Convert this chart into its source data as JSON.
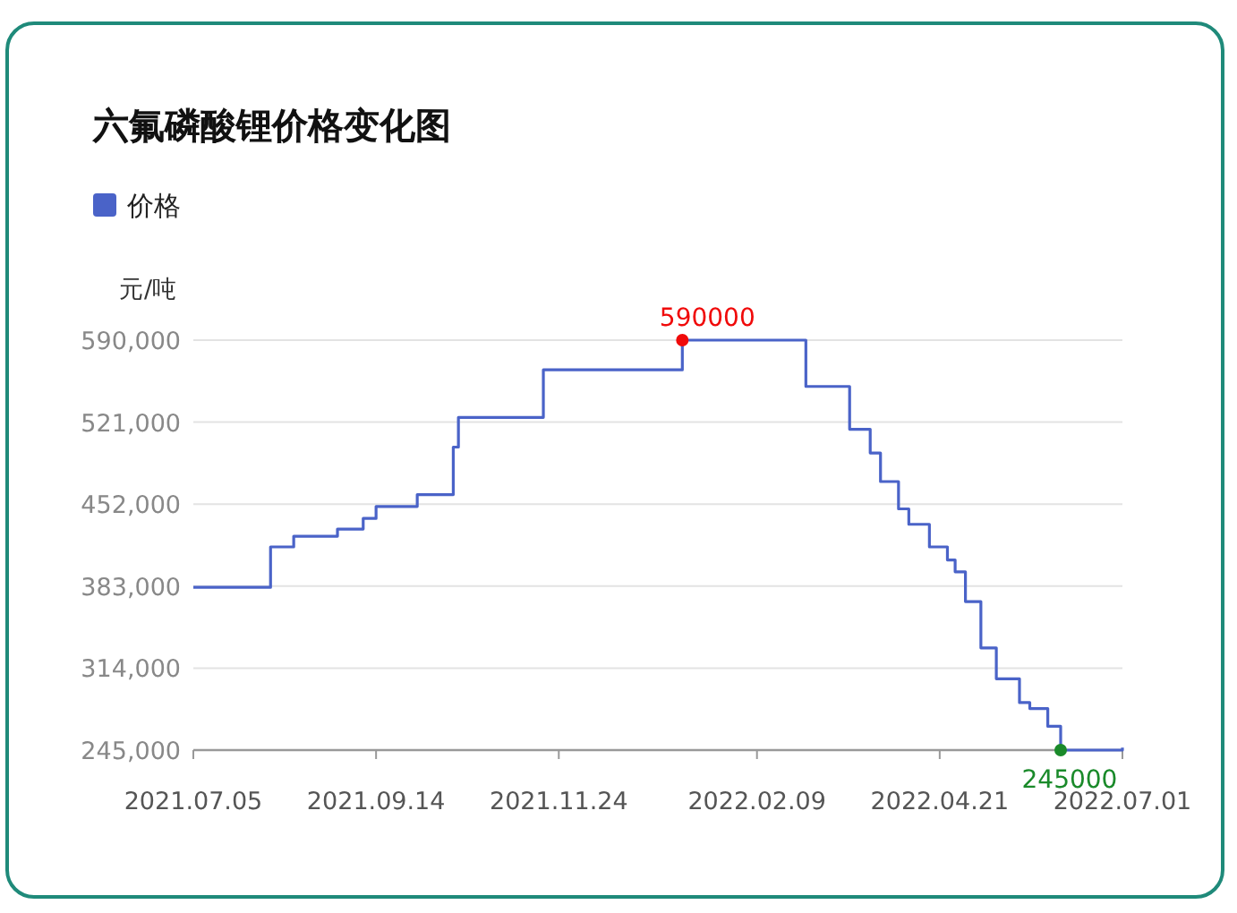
{
  "chart_data": {
    "type": "step",
    "title": "六氟磷酸锂价格变化图",
    "ylabel": "元/吨",
    "x": [
      "2021-07-05",
      "2021-08-04",
      "2021-08-13",
      "2021-08-30",
      "2021-09-09",
      "2021-09-14",
      "2021-09-30",
      "2021-10-14",
      "2021-10-16",
      "2021-11-18",
      "2022-01-11",
      "2022-02-28",
      "2022-03-17",
      "2022-03-25",
      "2022-03-29",
      "2022-04-05",
      "2022-04-09",
      "2022-04-17",
      "2022-04-24",
      "2022-04-27",
      "2022-05-01",
      "2022-05-07",
      "2022-05-13",
      "2022-05-22",
      "2022-05-26",
      "2022-06-02",
      "2022-06-07",
      "2022-07-01"
    ],
    "series": [
      {
        "name": "价格",
        "color": "#4a63c8",
        "values": [
          382000,
          416000,
          425000,
          431000,
          440000,
          450000,
          460000,
          500000,
          525000,
          565000,
          590000,
          551000,
          515000,
          495000,
          471000,
          448000,
          435000,
          416000,
          405000,
          395000,
          370000,
          331000,
          305000,
          285000,
          280000,
          265000,
          245000,
          247000
        ]
      }
    ],
    "annotations": [
      {
        "text": "590000",
        "x": "2022-01-11",
        "y": 590000
      },
      {
        "text": "245000",
        "x": "2022-06-07",
        "y": 245000
      }
    ],
    "xlim": [
      "2021-07-05",
      "2022-07-01"
    ],
    "xticks": [
      {
        "value": "2021-07-05",
        "label": "2021.07.05"
      },
      {
        "value": "2021-09-14",
        "label": "2021.09.14"
      },
      {
        "value": "2021-11-24",
        "label": "2021.11.24"
      },
      {
        "value": "2022-02-09",
        "label": "2022.02.09"
      },
      {
        "value": "2022-04-21",
        "label": "2022.04.21"
      },
      {
        "value": "2022-07-01",
        "label": "2022.07.01"
      }
    ],
    "ylim": [
      245000,
      590000
    ],
    "yticks": [
      {
        "value": 245000,
        "label": "245,000"
      },
      {
        "value": 314000,
        "label": "314,000"
      },
      {
        "value": 383000,
        "label": "383,000"
      },
      {
        "value": 452000,
        "label": "452,000"
      },
      {
        "value": 521000,
        "label": "521,000"
      },
      {
        "value": 590000,
        "label": "590,000"
      }
    ],
    "grid": "y",
    "legend": "top left",
    "marker": "none",
    "line_style": "solid"
  }
}
